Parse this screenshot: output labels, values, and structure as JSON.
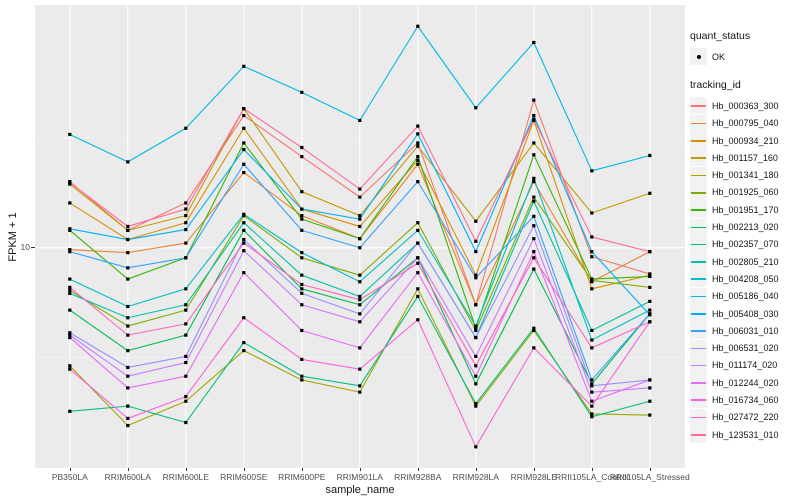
{
  "figure": {
    "y_axis": {
      "title": "FPKM + 1",
      "tick_label": "10"
    },
    "x_axis": {
      "title": "sample_name"
    },
    "legend": {
      "quant_status_title": "quant_status",
      "ok_label": "OK",
      "tracking_id_title": "tracking_id"
    }
  },
  "chart_data": {
    "type": "line",
    "title": "",
    "xlabel": "sample_name",
    "ylabel": "FPKM + 1",
    "y_scale": "log10",
    "y_tick_labels": [
      10
    ],
    "y_minor_gridlines": [
      3.162,
      31.62
    ],
    "ylim": [
      1,
      127
    ],
    "grid": true,
    "legend_position": "right",
    "panel_bg": "#EBEBEB",
    "gridline_color": "#FFFFFF",
    "point_color": "#000000",
    "quant_status": "OK",
    "categories": [
      "PB350LA",
      "RRIM600LA",
      "RRIM600LE",
      "RRIM600SE",
      "RRIM600PE",
      "RRIM901LA",
      "RRIM928BA",
      "RRIM928LA",
      "RRIM928LE",
      "RRII105LA_Control",
      "RRII105LA_Stressed"
    ],
    "series": [
      {
        "name": "Hb_000363_300",
        "color": "#F8766D",
        "values": [
          20,
          12,
          16,
          40,
          26,
          17,
          30,
          5.5,
          47,
          9.1,
          7.6
        ]
      },
      {
        "name": "Hb_000795_040",
        "color": "#EA8331",
        "values": [
          9.8,
          9.5,
          10.5,
          22,
          14,
          11,
          24,
          5.5,
          20,
          7.0,
          9.6
        ]
      },
      {
        "name": "Hb_000934_210",
        "color": "#D89000",
        "values": [
          16,
          10.9,
          13,
          35,
          15,
          12.5,
          25,
          7.5,
          38,
          6.5,
          7.5
        ]
      },
      {
        "name": "Hb_001157_160",
        "color": "#C09B00",
        "values": [
          19.5,
          12,
          14,
          43,
          18,
          14,
          29,
          13.2,
          30,
          14.4,
          17.7
        ]
      },
      {
        "name": "Hb_001341_180",
        "color": "#A3A500",
        "values": [
          2.9,
          1.55,
          2.0,
          3.4,
          2.5,
          2.2,
          6.5,
          1.9,
          4.2,
          1.75,
          1.73
        ]
      },
      {
        "name": "Hb_001925_060",
        "color": "#7CAE00",
        "values": [
          6.4,
          4.4,
          5.2,
          14,
          9,
          7.5,
          13,
          4.2,
          17,
          7.1,
          6.6
        ]
      },
      {
        "name": "Hb_001951_170",
        "color": "#39B600",
        "values": [
          12,
          7.2,
          9,
          30,
          13.5,
          11,
          26,
          4.3,
          26.5,
          7.2,
          7.4
        ]
      },
      {
        "name": "Hb_002213_020",
        "color": "#00BB4E",
        "values": [
          5.2,
          3.4,
          4.0,
          12,
          6.5,
          5.5,
          9,
          2.4,
          8,
          2.4,
          5.0
        ]
      },
      {
        "name": "Hb_002357_070",
        "color": "#00BF7D",
        "values": [
          1.8,
          1.9,
          1.6,
          3.7,
          2.6,
          2.35,
          6.0,
          1.95,
          4.3,
          1.7,
          2.0
        ]
      },
      {
        "name": "Hb_002805_210",
        "color": "#00C1A3",
        "values": [
          6.2,
          4.8,
          5.5,
          13,
          7.5,
          6.0,
          10.5,
          3.9,
          16.3,
          4.2,
          5.7
        ]
      },
      {
        "name": "Hb_004208_050",
        "color": "#00BFC4",
        "values": [
          7.2,
          5.4,
          6.5,
          14.2,
          9.5,
          7.0,
          12,
          4.4,
          20.7,
          3.8,
          5.2
        ]
      },
      {
        "name": "Hb_005186_040",
        "color": "#00BAE0",
        "values": [
          32.8,
          24.6,
          35,
          67,
          51,
          38,
          102,
          43.4,
          86,
          22.4,
          26.3
        ]
      },
      {
        "name": "Hb_005408_030",
        "color": "#00B0F6",
        "values": [
          12.2,
          10.9,
          12.1,
          28,
          15,
          13.5,
          33,
          9.6,
          40,
          9.6,
          4.95
        ]
      },
      {
        "name": "Hb_006031_010",
        "color": "#35A2FF",
        "values": [
          9.6,
          8.1,
          9,
          24,
          12,
          10,
          20,
          7.3,
          13.9,
          2.5,
          5.0
        ]
      },
      {
        "name": "Hb_006531_020",
        "color": "#9590FF",
        "values": [
          4.1,
          2.85,
          3.2,
          10.9,
          6.2,
          5.0,
          10.5,
          3.9,
          12.6,
          2.35,
          2.5
        ]
      },
      {
        "name": "Hb_011174_020",
        "color": "#C77CFF",
        "values": [
          4.0,
          2.6,
          3.0,
          9.7,
          5.5,
          4.6,
          9.0,
          3.2,
          11,
          2.2,
          2.3
        ]
      },
      {
        "name": "Hb_012244_020",
        "color": "#E76BF3",
        "values": [
          3.9,
          2.3,
          2.6,
          7.7,
          4.2,
          3.5,
          7.7,
          2.6,
          9.6,
          2.0,
          2.5
        ]
      },
      {
        "name": "Hb_016734_060",
        "color": "#FA62DB",
        "values": [
          2.8,
          1.67,
          2.1,
          4.8,
          3.1,
          2.8,
          4.7,
          1.24,
          3.5,
          1.9,
          4.6
        ]
      },
      {
        "name": "Hb_027472_220",
        "color": "#FF62BC",
        "values": [
          6.6,
          4.0,
          4.5,
          10.5,
          6.8,
          5.8,
          8.5,
          2.9,
          9.0,
          3.5,
          4.6
        ]
      },
      {
        "name": "Hb_123531_010",
        "color": "#FF6A98",
        "values": [
          19.8,
          12.5,
          15,
          43,
          28.6,
          18.5,
          35.8,
          10.7,
          38.5,
          11.2,
          9.6
        ]
      }
    ]
  }
}
